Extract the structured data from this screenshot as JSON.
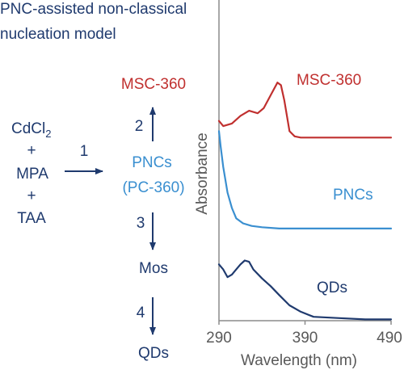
{
  "title_line1": "PNC-assisted non-classical",
  "title_line2": "nucleation model",
  "scheme": {
    "reactants": {
      "cdcl": "CdCl",
      "cdcl_sub": "2",
      "plus_1": "+",
      "mpa": "MPA",
      "plus_2": "+",
      "taa": "TAA"
    },
    "step_1": "1",
    "step_2": "2",
    "step_3": "3",
    "step_4": "4",
    "msc": "MSC-360",
    "pncs": "PNCs",
    "pncs_sub": "(PC-360)",
    "mos": "Mos",
    "qds": "QDs"
  },
  "colors": {
    "dark_blue": "#1f3a6e",
    "red": "#c0302f",
    "light_blue": "#3a8fd0",
    "axis": "#8c8c8c",
    "label_gray": "#595959"
  },
  "chart_data": {
    "type": "line",
    "xlabel": "Wavelength (nm)",
    "ylabel": "Absorbance",
    "xlim": [
      290,
      490
    ],
    "x_ticks": [
      "290",
      "390",
      "490"
    ],
    "grid": false,
    "series": [
      {
        "name": "MSC-360",
        "x": [
          290,
          295,
          305,
          315,
          325,
          335,
          342,
          350,
          358,
          362,
          366,
          372,
          378,
          385,
          395,
          420,
          450,
          490
        ],
        "y": [
          0.78,
          0.76,
          0.77,
          0.8,
          0.82,
          0.81,
          0.83,
          0.88,
          0.93,
          0.92,
          0.86,
          0.74,
          0.72,
          0.715,
          0.715,
          0.715,
          0.715,
          0.715
        ]
      },
      {
        "name": "PNCs",
        "x": [
          290,
          292,
          295,
          300,
          305,
          310,
          318,
          328,
          340,
          360,
          390,
          430,
          490
        ],
        "y": [
          0.74,
          0.68,
          0.6,
          0.5,
          0.44,
          0.4,
          0.38,
          0.37,
          0.365,
          0.36,
          0.36,
          0.36,
          0.36
        ]
      },
      {
        "name": "QDs",
        "x": [
          290,
          295,
          300,
          305,
          310,
          315,
          320,
          325,
          330,
          340,
          350,
          360,
          372,
          385,
          400,
          430,
          460,
          490
        ],
        "y": [
          0.22,
          0.2,
          0.17,
          0.18,
          0.2,
          0.22,
          0.235,
          0.23,
          0.2,
          0.165,
          0.135,
          0.1,
          0.06,
          0.035,
          0.015,
          0.01,
          0.005,
          0.005
        ]
      }
    ],
    "labels": [
      "MSC-360",
      "PNCs",
      "QDs"
    ]
  }
}
